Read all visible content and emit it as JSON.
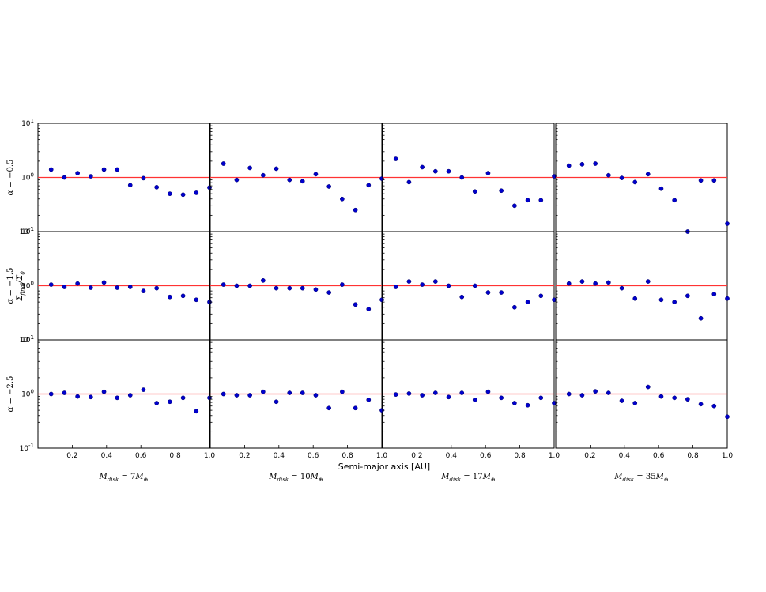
{
  "chart_data": {
    "type": "scatter",
    "grid": false,
    "y_scale": "log",
    "ylim": [
      0.1,
      10
    ],
    "xlim": [
      0.0,
      1.0
    ],
    "y_tick_labels": [
      "10",
      "1",
      "0",
      "10",
      "0",
      "10",
      "-1"
    ],
    "y_ticks": [
      {
        "mant": "10",
        "exp": "1"
      },
      {
        "mant": "10",
        "exp": "0"
      },
      {
        "mant": "10",
        "exp": "-1"
      }
    ],
    "x_ticks": [
      "0.2",
      "0.4",
      "0.6",
      "0.8",
      "1.0"
    ],
    "xlabel": "Semi-major axis [AU]",
    "ylabel": "Σ_final/Σ_0",
    "reference_line_y": 1.0,
    "columns": [
      "M_disk=7M_⊕",
      "M_disk=10M_⊕",
      "M_disk=17M_⊕",
      "M_disk=35M_⊕"
    ],
    "column_labels": [
      {
        "m": "7"
      },
      {
        "m": "10"
      },
      {
        "m": "17"
      },
      {
        "m": "35"
      }
    ],
    "rows": [
      {
        "alpha": "−0.5"
      },
      {
        "alpha": "−1.5"
      },
      {
        "alpha": "−2.5"
      }
    ],
    "x": [
      0.077,
      0.154,
      0.231,
      0.308,
      0.385,
      0.462,
      0.538,
      0.615,
      0.692,
      0.769,
      0.846,
      0.923,
      1.0
    ],
    "panels": [
      [
        [
          1.4,
          1.0,
          1.2,
          1.05,
          1.4,
          1.4,
          0.72,
          0.97,
          0.66,
          0.5,
          0.48,
          0.52,
          0.65
        ],
        [
          1.8,
          0.9,
          1.5,
          1.1,
          1.45,
          0.9,
          0.85,
          1.15,
          0.68,
          0.4,
          0.25,
          0.72,
          0.95
        ],
        [
          2.2,
          0.82,
          1.55,
          1.3,
          1.3,
          1.0,
          0.55,
          1.2,
          0.57,
          0.3,
          0.38,
          0.38,
          1.05
        ],
        [
          1.65,
          1.75,
          1.8,
          1.1,
          0.98,
          0.82,
          1.15,
          0.62,
          0.38,
          0.1,
          0.88,
          0.88,
          0.14
        ]
      ],
      [
        [
          1.05,
          0.95,
          1.1,
          0.92,
          1.15,
          0.92,
          0.95,
          0.8,
          0.9,
          0.62,
          0.65,
          0.55,
          0.5
        ],
        [
          1.05,
          1.0,
          1.0,
          1.25,
          0.9,
          0.9,
          0.9,
          0.85,
          0.75,
          1.05,
          0.45,
          0.37,
          0.55
        ],
        [
          0.95,
          1.2,
          1.05,
          1.2,
          1.0,
          0.62,
          1.0,
          0.75,
          0.75,
          0.4,
          0.5,
          0.65,
          0.55
        ],
        [
          1.1,
          1.2,
          1.1,
          1.15,
          0.9,
          0.58,
          1.2,
          0.55,
          0.5,
          0.65,
          0.25,
          0.7,
          0.58
        ]
      ],
      [
        [
          1.0,
          1.05,
          0.9,
          0.88,
          1.1,
          0.85,
          0.95,
          1.2,
          0.68,
          0.72,
          0.85,
          0.48,
          0.85
        ],
        [
          1.0,
          0.95,
          0.95,
          1.1,
          0.72,
          1.05,
          1.05,
          0.95,
          0.55,
          1.1,
          0.55,
          0.78,
          0.5
        ],
        [
          0.98,
          1.02,
          0.95,
          1.05,
          0.88,
          1.05,
          0.78,
          1.1,
          0.85,
          0.68,
          0.62,
          0.85,
          0.68
        ],
        [
          1.0,
          0.95,
          1.12,
          1.05,
          0.75,
          0.68,
          1.35,
          0.9,
          0.85,
          0.8,
          0.65,
          0.6,
          0.38
        ]
      ]
    ]
  }
}
